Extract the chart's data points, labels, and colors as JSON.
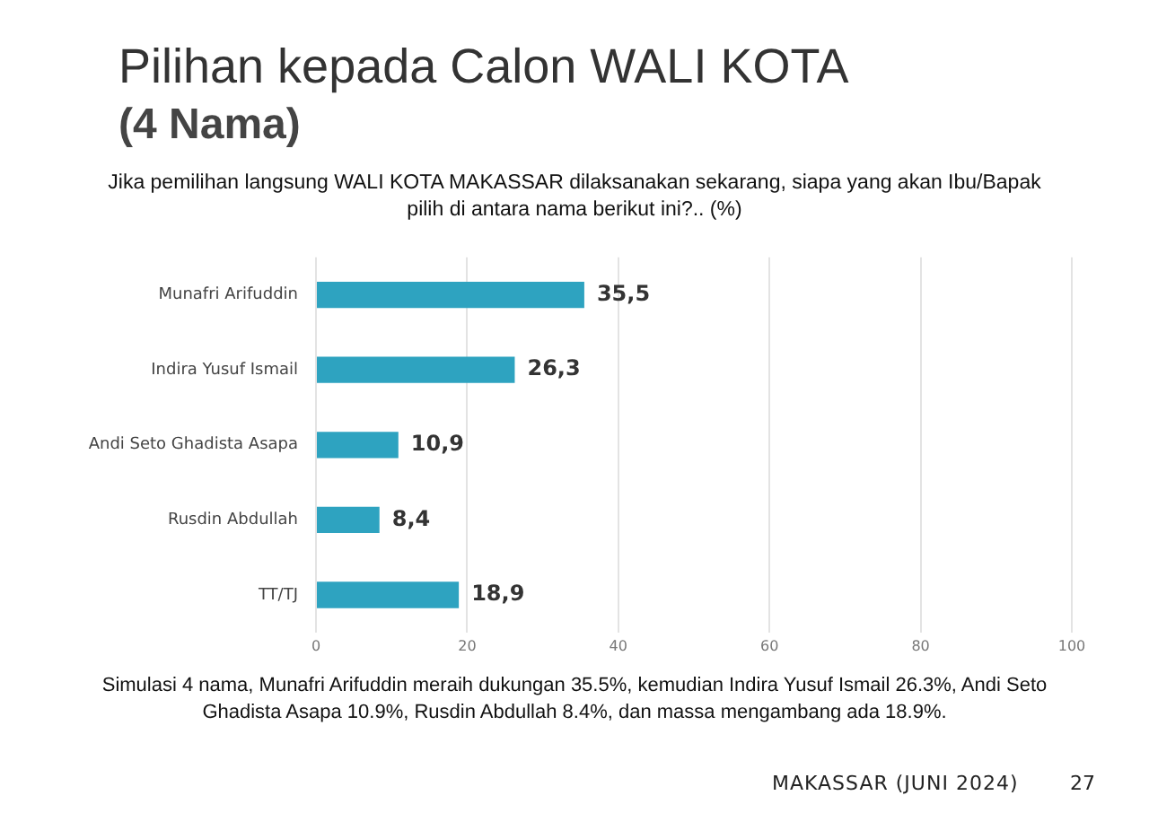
{
  "chart_data": {
    "type": "bar",
    "orientation": "horizontal",
    "title": "Pilihan kepada Calon WALI KOTA",
    "subtitle": "(4 Nama)",
    "annotations": [
      "Jika pemilihan langsung WALI KOTA MAKASSAR dilaksanakan sekarang, siapa yang akan Ibu/Bapak pilih di antara nama berikut ini?.. (%)",
      "Simulasi 4 nama, Munafri Arifuddin meraih dukungan 35.5%, kemudian Indira Yusuf Ismail 26.3%, Andi Seto Ghadista Asapa 10.9%, Rusdin Abdullah 8.4%, dan massa mengambang ada 18.9%.",
      "MAKASSAR (JUNI 2024)",
      "27"
    ],
    "categories": [
      "Munafri Arifuddin",
      "Indira Yusuf Ismail",
      "Andi Seto Ghadista Asapa",
      "Rusdin Abdullah",
      "TT/TJ"
    ],
    "values": [
      35.5,
      26.3,
      10.9,
      8.4,
      18.9
    ],
    "value_labels": [
      "35,5",
      "26,3",
      "10,9",
      "8,4",
      "18,9"
    ],
    "color": "#2ea3c0",
    "xlim": [
      0,
      100
    ],
    "xticks": [
      0,
      20,
      40,
      60,
      80,
      100
    ],
    "grid": "x",
    "legend": false
  }
}
